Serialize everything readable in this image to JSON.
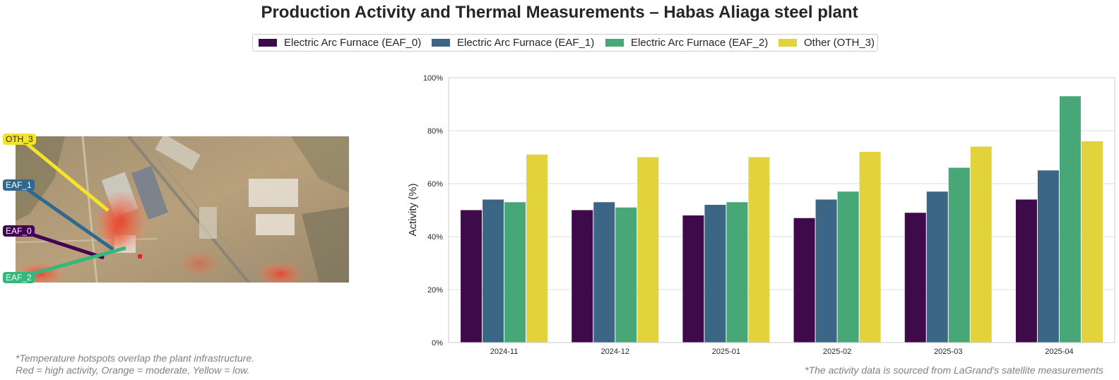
{
  "title": "Production Activity and Thermal Measurements – Habas Aliaga steel plant",
  "legend": [
    {
      "label": "Electric Arc Furnace (EAF_0)",
      "color": "#3f0a4a"
    },
    {
      "label": "Electric Arc Furnace (EAF_1)",
      "color": "#3b6685"
    },
    {
      "label": "Electric Arc Furnace (EAF_2)",
      "color": "#47a777"
    },
    {
      "label": "Other (OTH_3)",
      "color": "#e2d33c"
    }
  ],
  "map": {
    "labels": [
      {
        "text": "OTH_3",
        "color": "#f4e329",
        "text_color": "#262626"
      },
      {
        "text": "EAF_1",
        "color": "#31688e",
        "text_color": "#ffffff"
      },
      {
        "text": "EAF_0",
        "color": "#440154",
        "text_color": "#ffffff"
      },
      {
        "text": "EAF_2",
        "color": "#35b779",
        "text_color": "#ffffff"
      }
    ]
  },
  "notes": {
    "left_line1": "*Temperature hotspots overlap the plant infrastructure.",
    "left_line2": "Red = high activity, Orange = moderate, Yellow = low.",
    "right": "*The activity data is sourced from LaGrand's satellite measurements"
  },
  "chart_data": {
    "type": "bar",
    "categories": [
      "2024-11",
      "2024-12",
      "2025-01",
      "2025-02",
      "2025-03",
      "2025-04"
    ],
    "series": [
      {
        "name": "Electric Arc Furnace (EAF_0)",
        "values": [
          50,
          50,
          48,
          47,
          49,
          54
        ]
      },
      {
        "name": "Electric Arc Furnace (EAF_1)",
        "values": [
          54,
          53,
          52,
          54,
          57,
          65
        ]
      },
      {
        "name": "Electric Arc Furnace (EAF_2)",
        "values": [
          53,
          51,
          53,
          57,
          66,
          93
        ]
      },
      {
        "name": "Other (OTH_3)",
        "values": [
          71,
          70,
          70,
          72,
          74,
          76
        ]
      }
    ],
    "ylabel": "Activity (%)",
    "xlabel": "",
    "ylim": [
      0,
      100
    ],
    "yticks": [
      "0%",
      "20%",
      "40%",
      "60%",
      "80%",
      "100%"
    ],
    "grid": true,
    "legend_position": "top-center"
  }
}
